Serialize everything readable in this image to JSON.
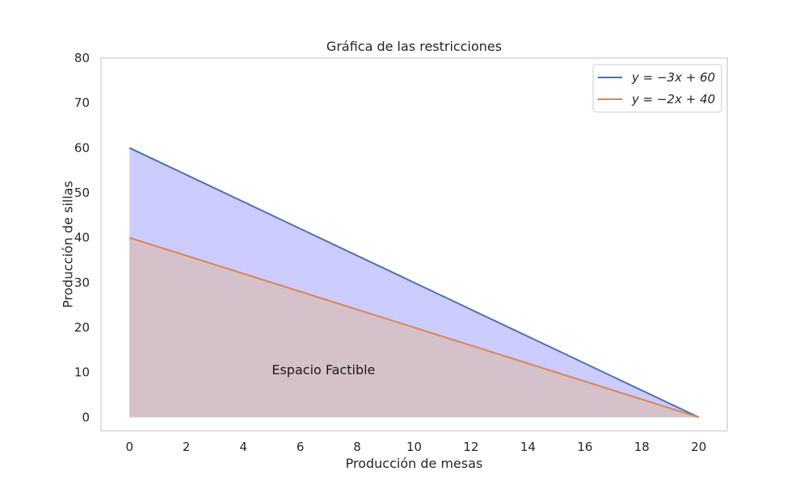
{
  "chart_data": {
    "type": "line",
    "title": "Gráfica de las restricciones",
    "xlabel": "Producción de mesas",
    "ylabel": "Producción de sillas",
    "xlim": [
      -1,
      21
    ],
    "ylim": [
      -3,
      80
    ],
    "xticks": [
      0,
      2,
      4,
      6,
      8,
      10,
      12,
      14,
      16,
      18,
      20
    ],
    "yticks": [
      0,
      10,
      20,
      30,
      40,
      50,
      60,
      70,
      80
    ],
    "grid": false,
    "legend_position": "top-right",
    "series": [
      {
        "name": "y = −3x + 60",
        "x": [
          0,
          20
        ],
        "y": [
          60,
          0
        ],
        "color": "#4c72b0",
        "fill_color": "#ccccff"
      },
      {
        "name": "y = −2x + 40",
        "x": [
          0,
          20
        ],
        "y": [
          40,
          0
        ],
        "color": "#dd8452",
        "fill_color": "#d5c1c9"
      }
    ],
    "annotations": [
      {
        "text": "Espacio Factible",
        "x": 5,
        "y": 10.5
      }
    ]
  }
}
